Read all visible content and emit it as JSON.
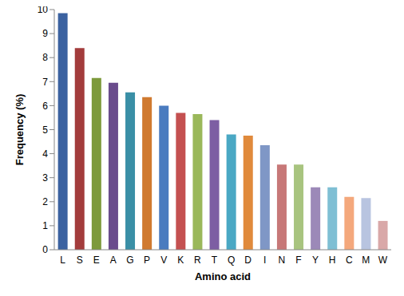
{
  "chart_data": {
    "type": "bar",
    "x_label": "Amino acid",
    "y_label": "Frequency (%)",
    "categories": [
      "L",
      "S",
      "E",
      "A",
      "G",
      "P",
      "V",
      "K",
      "R",
      "T",
      "Q",
      "D",
      "I",
      "N",
      "F",
      "Y",
      "H",
      "C",
      "M",
      "W"
    ],
    "values": [
      9.85,
      8.4,
      7.15,
      6.95,
      6.55,
      6.35,
      6.0,
      5.7,
      5.65,
      5.4,
      4.8,
      4.75,
      4.35,
      3.55,
      3.55,
      2.6,
      2.6,
      2.2,
      2.15,
      1.2
    ],
    "colors": [
      "#3b62a0",
      "#a33c3c",
      "#7d9a3c",
      "#6a4c8c",
      "#3a8fa6",
      "#d07a30",
      "#4a7bbf",
      "#c45050",
      "#9ab85a",
      "#7d5ea3",
      "#4aa8c4",
      "#e08a3c",
      "#7f97c6",
      "#c77878",
      "#a8c47f",
      "#9c89b8",
      "#7fbfd4",
      "#f4a87c",
      "#b8c4e0",
      "#d9a8a8"
    ],
    "ylim": [
      0,
      10
    ],
    "yticks": [
      0,
      1,
      2,
      3,
      4,
      5,
      6,
      7,
      8,
      9,
      10
    ],
    "grid": false
  }
}
